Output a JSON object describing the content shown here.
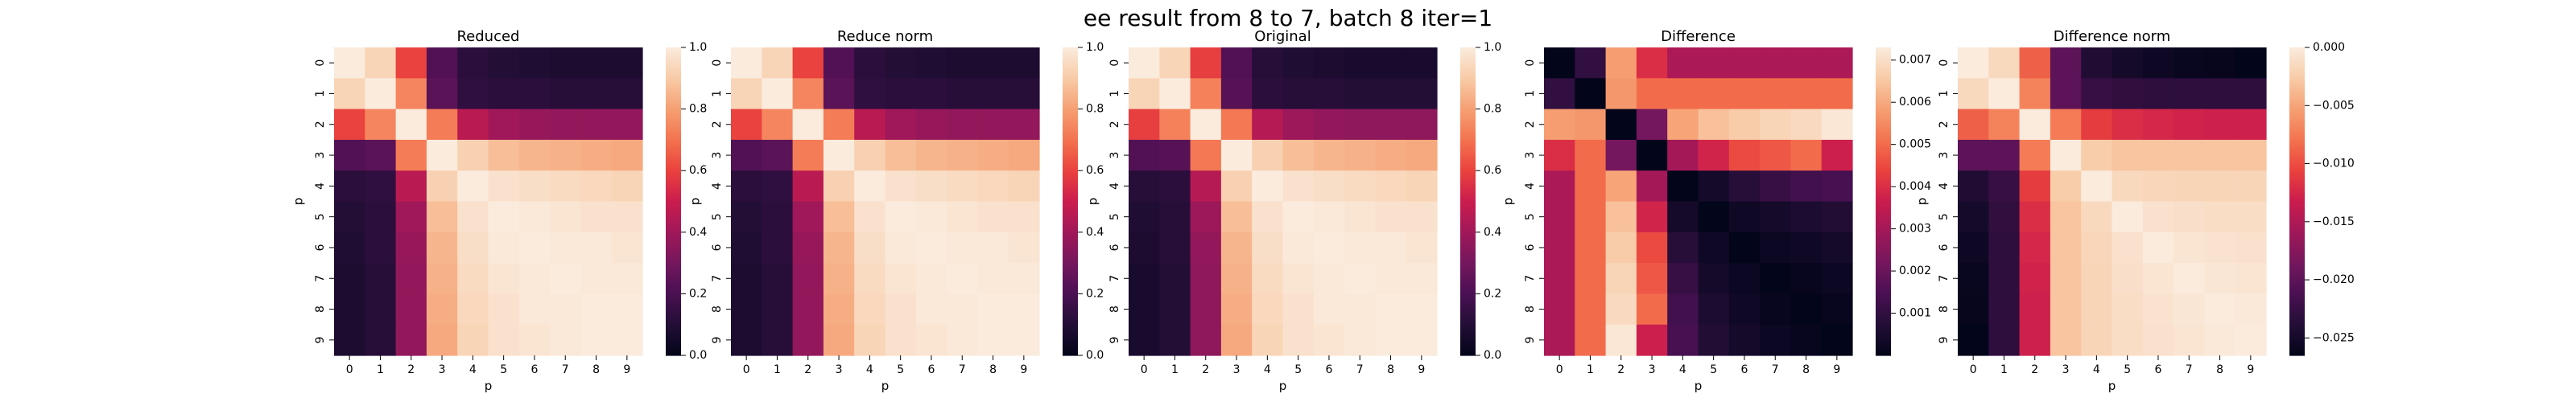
{
  "suptitle": "ee result from 8 to 7, batch 8 iter=1",
  "chart_data": [
    {
      "type": "heatmap",
      "title": "Reduced",
      "xlabel": "p",
      "ylabel": "p",
      "x_ticks": [
        "0",
        "1",
        "2",
        "3",
        "4",
        "5",
        "6",
        "7",
        "8",
        "9"
      ],
      "y_ticks": [
        "0",
        "1",
        "2",
        "3",
        "4",
        "5",
        "6",
        "7",
        "8",
        "9"
      ],
      "colormap": "rocket",
      "vmin": 0.0,
      "vmax": 1.0,
      "colorbar_ticks": [
        0.0,
        0.2,
        0.4,
        0.6,
        0.8,
        1.0
      ],
      "colorbar_tick_labels": [
        "0.0",
        "0.2",
        "0.4",
        "0.6",
        "0.8",
        "1.0"
      ],
      "values": [
        [
          1.0,
          0.93,
          0.6,
          0.22,
          0.12,
          0.1,
          0.09,
          0.08,
          0.08,
          0.08
        ],
        [
          0.93,
          1.0,
          0.74,
          0.24,
          0.13,
          0.12,
          0.12,
          0.11,
          0.11,
          0.11
        ],
        [
          0.6,
          0.74,
          1.0,
          0.72,
          0.46,
          0.4,
          0.38,
          0.37,
          0.37,
          0.37
        ],
        [
          0.22,
          0.24,
          0.72,
          1.0,
          0.92,
          0.87,
          0.85,
          0.84,
          0.83,
          0.82
        ],
        [
          0.12,
          0.13,
          0.46,
          0.92,
          1.0,
          0.97,
          0.96,
          0.95,
          0.94,
          0.93
        ],
        [
          0.1,
          0.12,
          0.4,
          0.87,
          0.97,
          1.0,
          0.99,
          0.98,
          0.97,
          0.97
        ],
        [
          0.09,
          0.12,
          0.38,
          0.85,
          0.96,
          0.99,
          1.0,
          0.99,
          0.99,
          0.98
        ],
        [
          0.08,
          0.11,
          0.37,
          0.84,
          0.95,
          0.98,
          0.99,
          1.0,
          0.99,
          0.99
        ],
        [
          0.08,
          0.11,
          0.37,
          0.83,
          0.94,
          0.97,
          0.99,
          0.99,
          1.0,
          1.0
        ],
        [
          0.08,
          0.11,
          0.37,
          0.82,
          0.93,
          0.97,
          0.98,
          0.99,
          1.0,
          1.0
        ]
      ]
    },
    {
      "type": "heatmap",
      "title": "Reduce norm",
      "xlabel": "p",
      "ylabel": "p",
      "x_ticks": [
        "0",
        "1",
        "2",
        "3",
        "4",
        "5",
        "6",
        "7",
        "8",
        "9"
      ],
      "y_ticks": [
        "0",
        "1",
        "2",
        "3",
        "4",
        "5",
        "6",
        "7",
        "8",
        "9"
      ],
      "colormap": "rocket",
      "vmin": 0.0,
      "vmax": 1.0,
      "colorbar_ticks": [
        0.0,
        0.2,
        0.4,
        0.6,
        0.8,
        1.0
      ],
      "colorbar_tick_labels": [
        "0.0",
        "0.2",
        "0.4",
        "0.6",
        "0.8",
        "1.0"
      ],
      "values": [
        [
          1.0,
          0.93,
          0.6,
          0.22,
          0.12,
          0.1,
          0.09,
          0.08,
          0.08,
          0.08
        ],
        [
          0.93,
          1.0,
          0.74,
          0.24,
          0.13,
          0.12,
          0.12,
          0.11,
          0.11,
          0.11
        ],
        [
          0.6,
          0.74,
          1.0,
          0.72,
          0.46,
          0.4,
          0.38,
          0.37,
          0.37,
          0.37
        ],
        [
          0.22,
          0.24,
          0.72,
          1.0,
          0.92,
          0.87,
          0.85,
          0.84,
          0.83,
          0.82
        ],
        [
          0.12,
          0.13,
          0.46,
          0.92,
          1.0,
          0.97,
          0.96,
          0.95,
          0.94,
          0.93
        ],
        [
          0.1,
          0.12,
          0.4,
          0.87,
          0.97,
          1.0,
          0.99,
          0.98,
          0.97,
          0.97
        ],
        [
          0.09,
          0.12,
          0.38,
          0.85,
          0.96,
          0.99,
          1.0,
          0.99,
          0.99,
          0.98
        ],
        [
          0.08,
          0.11,
          0.37,
          0.84,
          0.95,
          0.98,
          0.99,
          1.0,
          0.99,
          0.99
        ],
        [
          0.08,
          0.11,
          0.37,
          0.83,
          0.94,
          0.97,
          0.99,
          0.99,
          1.0,
          1.0
        ],
        [
          0.08,
          0.11,
          0.37,
          0.82,
          0.93,
          0.97,
          0.98,
          0.99,
          1.0,
          1.0
        ]
      ]
    },
    {
      "type": "heatmap",
      "title": "Original",
      "xlabel": "p",
      "ylabel": "p",
      "x_ticks": [
        "0",
        "1",
        "2",
        "3",
        "4",
        "5",
        "6",
        "7",
        "8",
        "9"
      ],
      "y_ticks": [
        "0",
        "1",
        "2",
        "3",
        "4",
        "5",
        "6",
        "7",
        "8",
        "9"
      ],
      "colormap": "rocket",
      "vmin": 0.0,
      "vmax": 1.0,
      "colorbar_ticks": [
        0.0,
        0.2,
        0.4,
        0.6,
        0.8,
        1.0
      ],
      "colorbar_tick_labels": [
        "0.0",
        "0.2",
        "0.4",
        "0.6",
        "0.8",
        "1.0"
      ],
      "values": [
        [
          1.0,
          0.93,
          0.59,
          0.22,
          0.11,
          0.09,
          0.08,
          0.07,
          0.07,
          0.07
        ],
        [
          0.93,
          1.0,
          0.73,
          0.23,
          0.12,
          0.11,
          0.11,
          0.1,
          0.1,
          0.1
        ],
        [
          0.59,
          0.73,
          1.0,
          0.71,
          0.45,
          0.39,
          0.37,
          0.36,
          0.36,
          0.36
        ],
        [
          0.22,
          0.23,
          0.71,
          1.0,
          0.92,
          0.87,
          0.85,
          0.84,
          0.83,
          0.82
        ],
        [
          0.11,
          0.12,
          0.45,
          0.92,
          1.0,
          0.97,
          0.96,
          0.95,
          0.94,
          0.93
        ],
        [
          0.09,
          0.11,
          0.39,
          0.87,
          0.97,
          1.0,
          0.99,
          0.98,
          0.97,
          0.97
        ],
        [
          0.08,
          0.11,
          0.37,
          0.85,
          0.96,
          0.99,
          1.0,
          0.99,
          0.99,
          0.98
        ],
        [
          0.07,
          0.1,
          0.36,
          0.84,
          0.95,
          0.98,
          0.99,
          1.0,
          0.99,
          0.99
        ],
        [
          0.07,
          0.1,
          0.36,
          0.83,
          0.94,
          0.97,
          0.99,
          0.99,
          1.0,
          1.0
        ],
        [
          0.07,
          0.1,
          0.36,
          0.82,
          0.93,
          0.97,
          0.98,
          0.99,
          1.0,
          1.0
        ]
      ]
    },
    {
      "type": "heatmap",
      "title": "Difference",
      "xlabel": "p",
      "ylabel": "p",
      "x_ticks": [
        "0",
        "1",
        "2",
        "3",
        "4",
        "5",
        "6",
        "7",
        "8",
        "9"
      ],
      "y_ticks": [
        "0",
        "1",
        "2",
        "3",
        "4",
        "5",
        "6",
        "7",
        "8",
        "9"
      ],
      "colormap": "rocket",
      "vmin": 0.0,
      "vmax": 0.0073,
      "colorbar_ticks": [
        0.001,
        0.002,
        0.003,
        0.004,
        0.005,
        0.006,
        0.007
      ],
      "colorbar_tick_labels": [
        "0.001",
        "0.002",
        "0.003",
        "0.004",
        "0.005",
        "0.006",
        "0.007"
      ],
      "values": [
        [
          0.0,
          0.001,
          0.0058,
          0.004,
          0.0031,
          0.0031,
          0.0031,
          0.0031,
          0.0031,
          0.0031
        ],
        [
          0.001,
          0.0,
          0.0057,
          0.005,
          0.005,
          0.005,
          0.005,
          0.005,
          0.005,
          0.005
        ],
        [
          0.0058,
          0.0057,
          0.0,
          0.0022,
          0.0059,
          0.0064,
          0.0066,
          0.0068,
          0.0069,
          0.0072
        ],
        [
          0.004,
          0.005,
          0.0022,
          0.0,
          0.003,
          0.0038,
          0.0045,
          0.0047,
          0.005,
          0.0037
        ],
        [
          0.0031,
          0.005,
          0.0059,
          0.003,
          0.0,
          0.0004,
          0.0008,
          0.0011,
          0.0013,
          0.0014
        ],
        [
          0.0031,
          0.005,
          0.0064,
          0.0038,
          0.0004,
          0.0,
          0.0003,
          0.0004,
          0.0006,
          0.0007
        ],
        [
          0.0031,
          0.005,
          0.0066,
          0.0045,
          0.0008,
          0.0003,
          0.0,
          0.0002,
          0.0003,
          0.0004
        ],
        [
          0.0031,
          0.005,
          0.0068,
          0.0047,
          0.0011,
          0.0004,
          0.0002,
          0.0,
          0.0001,
          0.0002
        ],
        [
          0.0031,
          0.005,
          0.0069,
          0.005,
          0.0013,
          0.0006,
          0.0003,
          0.0001,
          0.0,
          0.0001
        ],
        [
          0.0031,
          0.005,
          0.0072,
          0.0037,
          0.0014,
          0.0007,
          0.0004,
          0.0002,
          0.0001,
          0.0
        ]
      ]
    },
    {
      "type": "heatmap",
      "title": "Difference norm",
      "xlabel": "p",
      "ylabel": "p",
      "x_ticks": [
        "0",
        "1",
        "2",
        "3",
        "4",
        "5",
        "6",
        "7",
        "8",
        "9"
      ],
      "y_ticks": [
        "0",
        "1",
        "2",
        "3",
        "4",
        "5",
        "6",
        "7",
        "8",
        "9"
      ],
      "colormap": "rocket",
      "vmin": -0.0265,
      "vmax": 0.0,
      "colorbar_ticks": [
        -0.025,
        -0.02,
        -0.015,
        -0.01,
        -0.005,
        0.0
      ],
      "colorbar_tick_labels": [
        "−0.025",
        "−0.020",
        "−0.015",
        "−0.010",
        "−0.005",
        "0.000"
      ],
      "values": [
        [
          0.0,
          -0.0015,
          -0.009,
          -0.02,
          -0.024,
          -0.025,
          -0.0255,
          -0.026,
          -0.0262,
          -0.0265
        ],
        [
          -0.0015,
          0.0,
          -0.007,
          -0.02,
          -0.0225,
          -0.023,
          -0.0232,
          -0.0232,
          -0.0232,
          -0.0232
        ],
        [
          -0.009,
          -0.007,
          0.0,
          -0.0075,
          -0.011,
          -0.012,
          -0.0125,
          -0.0128,
          -0.013,
          -0.013
        ],
        [
          -0.02,
          -0.02,
          -0.0075,
          0.0,
          -0.0025,
          -0.003,
          -0.003,
          -0.003,
          -0.003,
          -0.003
        ],
        [
          -0.024,
          -0.0225,
          -0.011,
          -0.0025,
          0.0,
          -0.0015,
          -0.0017,
          -0.0018,
          -0.0018,
          -0.0018
        ],
        [
          -0.025,
          -0.023,
          -0.012,
          -0.003,
          -0.0015,
          0.0,
          -0.0008,
          -0.001,
          -0.0012,
          -0.0012
        ],
        [
          -0.0255,
          -0.0232,
          -0.0125,
          -0.003,
          -0.0017,
          -0.0008,
          0.0,
          -0.0005,
          -0.0007,
          -0.0008
        ],
        [
          -0.026,
          -0.0232,
          -0.0128,
          -0.003,
          -0.0018,
          -0.001,
          -0.0005,
          0.0,
          -0.0004,
          -0.0005
        ],
        [
          -0.0262,
          -0.0232,
          -0.013,
          -0.003,
          -0.0018,
          -0.0012,
          -0.0007,
          -0.0004,
          0.0,
          -0.0002
        ],
        [
          -0.0265,
          -0.0232,
          -0.013,
          -0.003,
          -0.0018,
          -0.0012,
          -0.0008,
          -0.0005,
          -0.0002,
          0.0
        ]
      ]
    }
  ]
}
